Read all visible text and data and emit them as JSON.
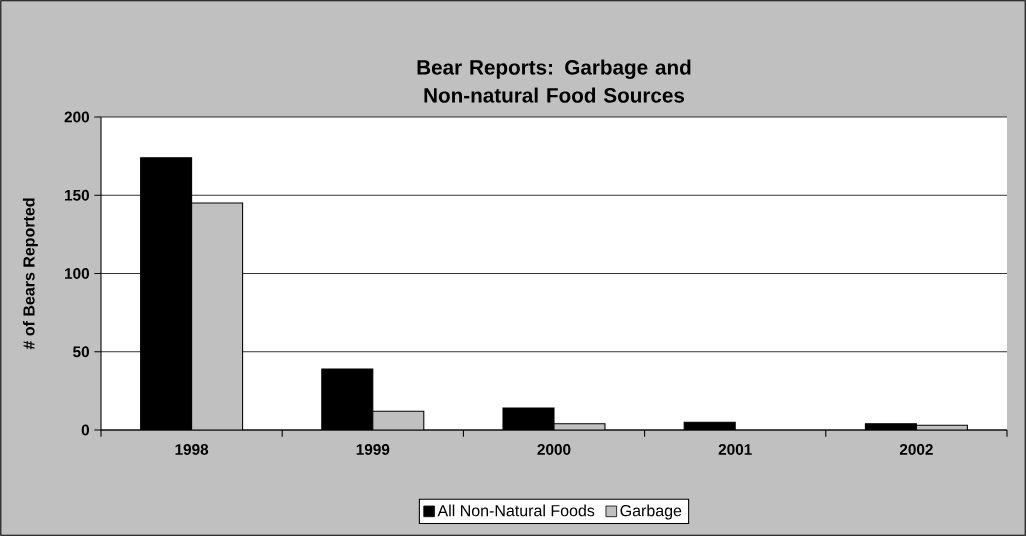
{
  "chart_data": {
    "type": "bar",
    "title": "Bear Reports: Garbage and Non-natural Food Sources",
    "ylabel": "# of Bears Reported",
    "categories": [
      "1998",
      "1999",
      "2000",
      "2001",
      "2002"
    ],
    "series": [
      {
        "name": "All Non-Natural Foods",
        "color": "#000000",
        "values": [
          174,
          39,
          14,
          5,
          4
        ]
      },
      {
        "name": "Garbage",
        "color": "#c0c0c0",
        "values": [
          145,
          12,
          4,
          0,
          3
        ]
      }
    ],
    "ylim": [
      0,
      200
    ],
    "yticks": [
      0,
      50,
      100,
      150,
      200
    ],
    "grid": "y",
    "legend": "bottom"
  }
}
